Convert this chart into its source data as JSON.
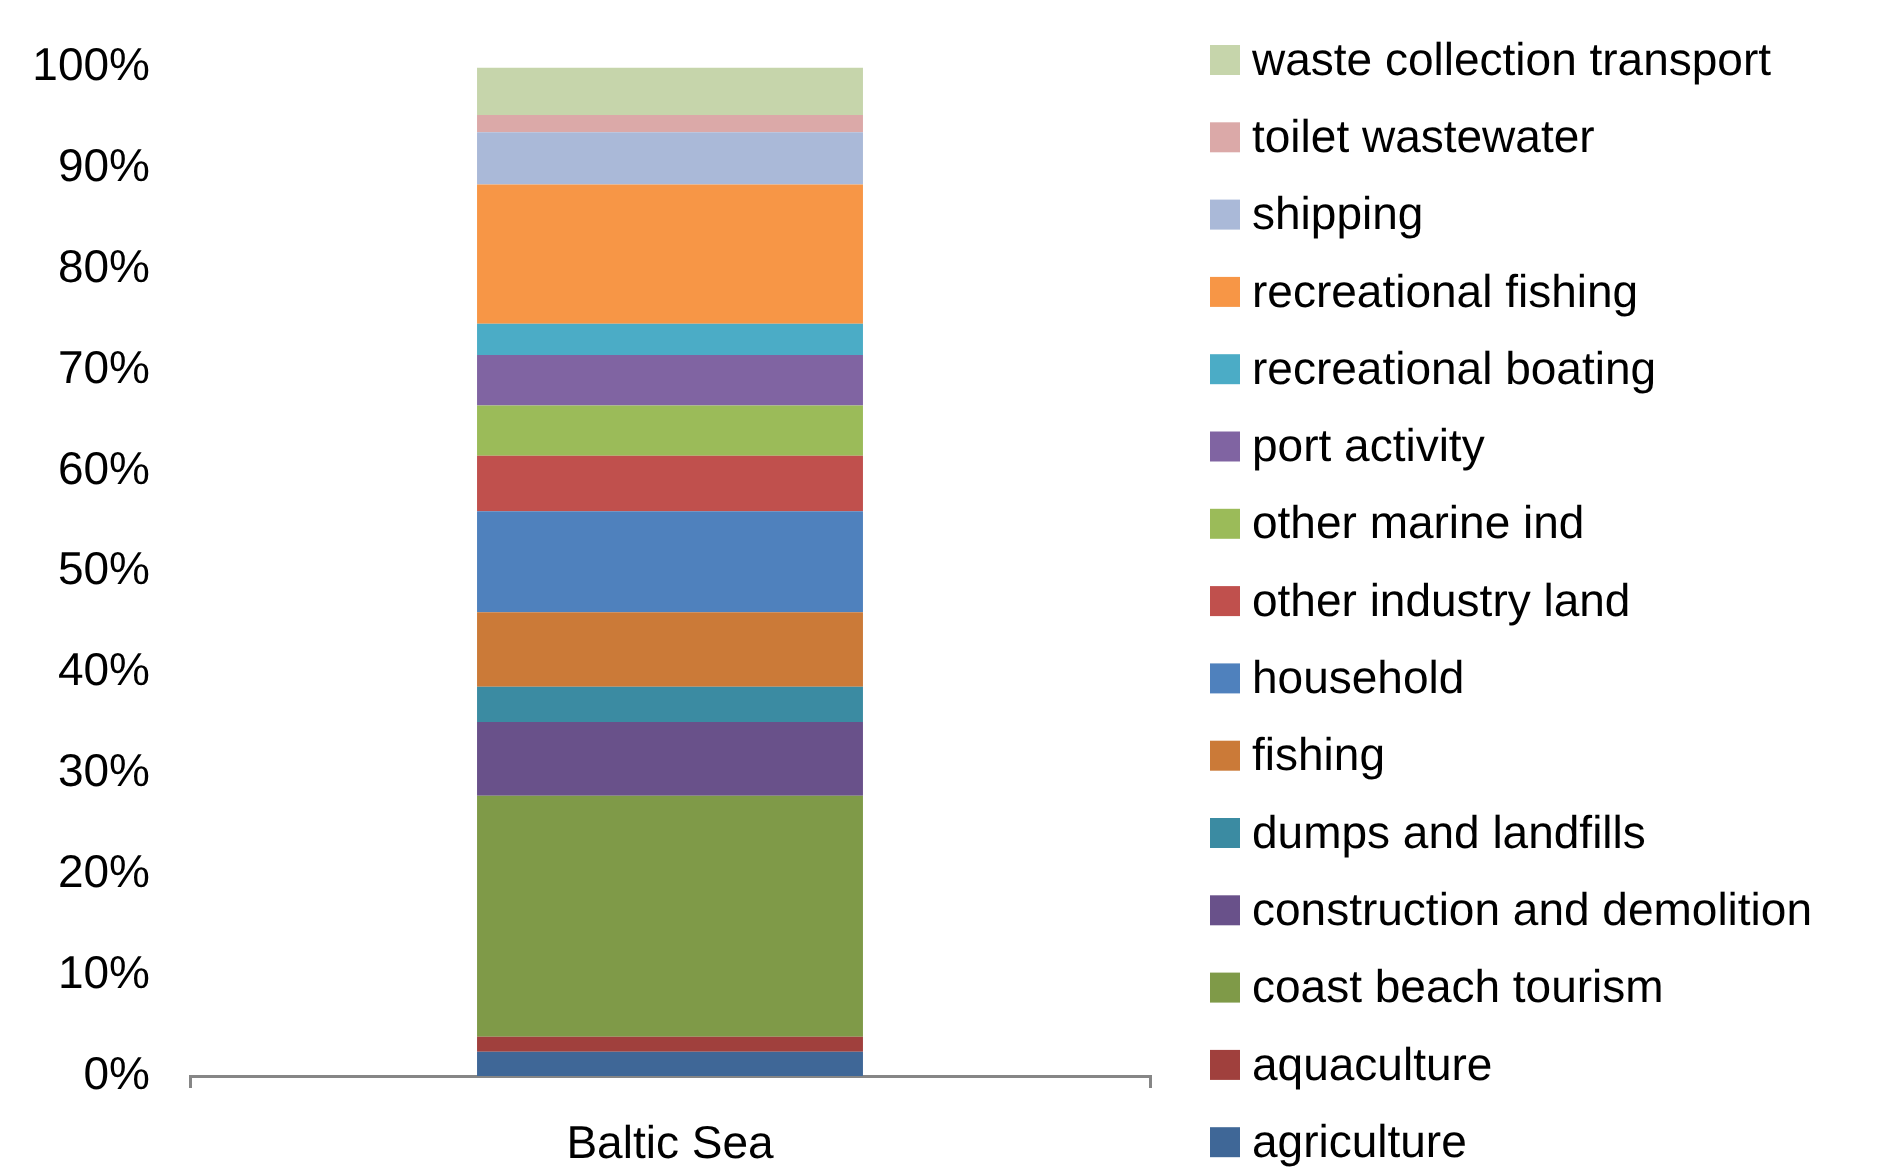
{
  "chart_data": {
    "type": "bar",
    "stacked": true,
    "categories": [
      "Baltic Sea"
    ],
    "series": [
      {
        "name": "agriculture",
        "color": "#3f6797",
        "values": [
          2.4
        ]
      },
      {
        "name": "aquaculture",
        "color": "#a0403d",
        "values": [
          1.5
        ]
      },
      {
        "name": "coast beach tourism",
        "color": "#7f9a48",
        "values": [
          23.9
        ]
      },
      {
        "name": "construction and demolition",
        "color": "#69518a",
        "values": [
          7.3
        ]
      },
      {
        "name": "dumps and landfills",
        "color": "#3b8ba2",
        "values": [
          3.5
        ]
      },
      {
        "name": "fishing",
        "color": "#cb7a38",
        "values": [
          7.4
        ]
      },
      {
        "name": "household",
        "color": "#4f81bd",
        "values": [
          10.0
        ]
      },
      {
        "name": "other industry land",
        "color": "#c0504d",
        "values": [
          5.5
        ]
      },
      {
        "name": "other marine ind",
        "color": "#9bbb59",
        "values": [
          5.0
        ]
      },
      {
        "name": "port activity",
        "color": "#8064a2",
        "values": [
          5.0
        ]
      },
      {
        "name": "recreational boating",
        "color": "#4bacc6",
        "values": [
          3.1
        ]
      },
      {
        "name": "recreational fishing",
        "color": "#f79646",
        "values": [
          13.8
        ]
      },
      {
        "name": "shipping",
        "color": "#aab9d8",
        "values": [
          5.2
        ]
      },
      {
        "name": "toilet wastewater",
        "color": "#dba9a8",
        "values": [
          1.7
        ]
      },
      {
        "name": "waste collection transport",
        "color": "#c6d5ab",
        "values": [
          4.7
        ]
      }
    ],
    "ylim": [
      0,
      100
    ],
    "yticks": [
      {
        "value": 0,
        "label": "0%"
      },
      {
        "value": 10,
        "label": "10%"
      },
      {
        "value": 20,
        "label": "20%"
      },
      {
        "value": 30,
        "label": "30%"
      },
      {
        "value": 40,
        "label": "40%"
      },
      {
        "value": 50,
        "label": "50%"
      },
      {
        "value": 60,
        "label": "60%"
      },
      {
        "value": 70,
        "label": "70%"
      },
      {
        "value": 80,
        "label": "80%"
      },
      {
        "value": 90,
        "label": "90%"
      },
      {
        "value": 100,
        "label": "100%"
      }
    ],
    "grid": false,
    "legend": "right"
  }
}
